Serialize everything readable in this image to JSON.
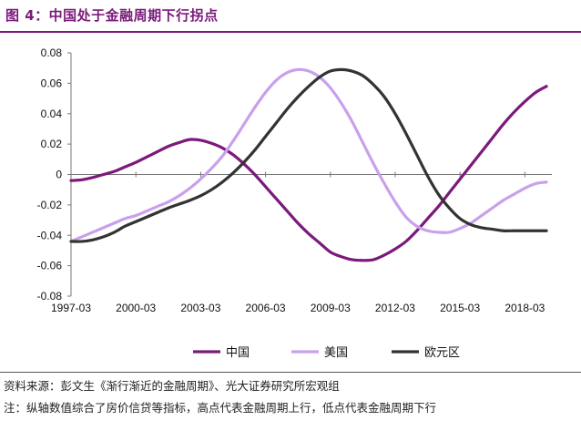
{
  "title": "图 4：中国处于金融周期下行拐点",
  "source": "资料来源：彭文生《渐行渐近的金融周期》、光大证券研究所宏观组",
  "note": "注：纵轴数值综合了房价信贷等指标，高点代表金融周期上行，低点代表金融周期下行",
  "chart_data": {
    "type": "line",
    "title": "",
    "xlabel": "",
    "ylabel": "",
    "ylim": [
      -0.08,
      0.08
    ],
    "yticks": [
      0.08,
      0.06,
      0.04,
      0.02,
      0,
      -0.02,
      -0.04,
      -0.06,
      -0.08
    ],
    "ytick_labels": [
      "0.08",
      "0.06",
      "0.04",
      "0.02",
      "0",
      "-0.02",
      "-0.04",
      "-0.06",
      "-0.08"
    ],
    "xlim": [
      1997.0,
      2019.25
    ],
    "xticks": [
      1997.0,
      2000.0,
      2003.0,
      2006.0,
      2009.0,
      2012.0,
      2015.0,
      2018.0
    ],
    "xtick_labels": [
      "1997-03",
      "2000-03",
      "2003-03",
      "2006-03",
      "2009-03",
      "2012-03",
      "2015-03",
      "2018-03"
    ],
    "legend_position": "bottom",
    "grid": false,
    "series": [
      {
        "name": "中国",
        "color": "#7b1a7b",
        "x": [
          1997.0,
          1997.5,
          1998.0,
          1998.5,
          1999.0,
          1999.5,
          2000.0,
          2000.5,
          2001.0,
          2001.5,
          2002.0,
          2002.5,
          2003.0,
          2003.5,
          2004.0,
          2004.5,
          2005.0,
          2005.5,
          2006.0,
          2006.5,
          2007.0,
          2007.5,
          2008.0,
          2008.5,
          2009.0,
          2009.5,
          2010.0,
          2010.5,
          2011.0,
          2011.5,
          2012.0,
          2012.5,
          2013.0,
          2013.5,
          2014.0,
          2014.5,
          2015.0,
          2015.5,
          2016.0,
          2016.5,
          2017.0,
          2017.5,
          2018.0,
          2018.5,
          2019.0
        ],
        "y": [
          -0.004,
          -0.0035,
          -0.002,
          0.0,
          0.002,
          0.005,
          0.008,
          0.0115,
          0.015,
          0.0185,
          0.021,
          0.023,
          0.0225,
          0.0205,
          0.0175,
          0.013,
          0.007,
          0.0,
          -0.008,
          -0.016,
          -0.024,
          -0.032,
          -0.039,
          -0.045,
          -0.051,
          -0.054,
          -0.056,
          -0.0565,
          -0.056,
          -0.053,
          -0.049,
          -0.044,
          -0.037,
          -0.029,
          -0.021,
          -0.012,
          -0.003,
          0.006,
          0.015,
          0.024,
          0.033,
          0.041,
          0.048,
          0.054,
          0.058
        ]
      },
      {
        "name": "美国",
        "color": "#c9a0ec",
        "x": [
          1997.0,
          1997.5,
          1998.0,
          1998.5,
          1999.0,
          1999.5,
          2000.0,
          2000.5,
          2001.0,
          2001.5,
          2002.0,
          2002.5,
          2003.0,
          2003.5,
          2004.0,
          2004.5,
          2005.0,
          2005.5,
          2006.0,
          2006.5,
          2007.0,
          2007.5,
          2008.0,
          2008.5,
          2009.0,
          2009.5,
          2010.0,
          2010.5,
          2011.0,
          2011.5,
          2012.0,
          2012.5,
          2013.0,
          2013.5,
          2014.0,
          2014.5,
          2015.0,
          2015.5,
          2016.0,
          2016.5,
          2017.0,
          2017.5,
          2018.0,
          2018.5,
          2019.0
        ],
        "y": [
          -0.044,
          -0.041,
          -0.038,
          -0.035,
          -0.032,
          -0.029,
          -0.027,
          -0.024,
          -0.021,
          -0.018,
          -0.014,
          -0.009,
          -0.003,
          0.004,
          0.012,
          0.022,
          0.033,
          0.044,
          0.054,
          0.062,
          0.067,
          0.069,
          0.068,
          0.064,
          0.057,
          0.047,
          0.035,
          0.021,
          0.007,
          -0.006,
          -0.018,
          -0.028,
          -0.034,
          -0.037,
          -0.038,
          -0.038,
          -0.0355,
          -0.032,
          -0.027,
          -0.022,
          -0.017,
          -0.013,
          -0.009,
          -0.006,
          -0.005
        ]
      },
      {
        "name": "欧元区",
        "color": "#333333",
        "x": [
          1997.0,
          1997.5,
          1998.0,
          1998.5,
          1999.0,
          1999.5,
          2000.0,
          2000.5,
          2001.0,
          2001.5,
          2002.0,
          2002.5,
          2003.0,
          2003.5,
          2004.0,
          2004.5,
          2005.0,
          2005.5,
          2006.0,
          2006.5,
          2007.0,
          2007.5,
          2008.0,
          2008.5,
          2009.0,
          2009.5,
          2010.0,
          2010.5,
          2011.0,
          2011.5,
          2012.0,
          2012.5,
          2013.0,
          2013.5,
          2014.0,
          2014.5,
          2015.0,
          2015.5,
          2016.0,
          2016.5,
          2017.0,
          2017.5,
          2018.0,
          2018.5,
          2019.0
        ],
        "y": [
          -0.044,
          -0.044,
          -0.043,
          -0.041,
          -0.038,
          -0.034,
          -0.031,
          -0.028,
          -0.025,
          -0.022,
          -0.0195,
          -0.017,
          -0.014,
          -0.01,
          -0.005,
          0.001,
          0.008,
          0.016,
          0.025,
          0.034,
          0.043,
          0.051,
          0.058,
          0.064,
          0.068,
          0.069,
          0.068,
          0.065,
          0.059,
          0.051,
          0.04,
          0.027,
          0.013,
          -0.001,
          -0.013,
          -0.022,
          -0.029,
          -0.033,
          -0.035,
          -0.036,
          -0.037,
          -0.037,
          -0.037,
          -0.037,
          -0.037
        ]
      }
    ]
  }
}
